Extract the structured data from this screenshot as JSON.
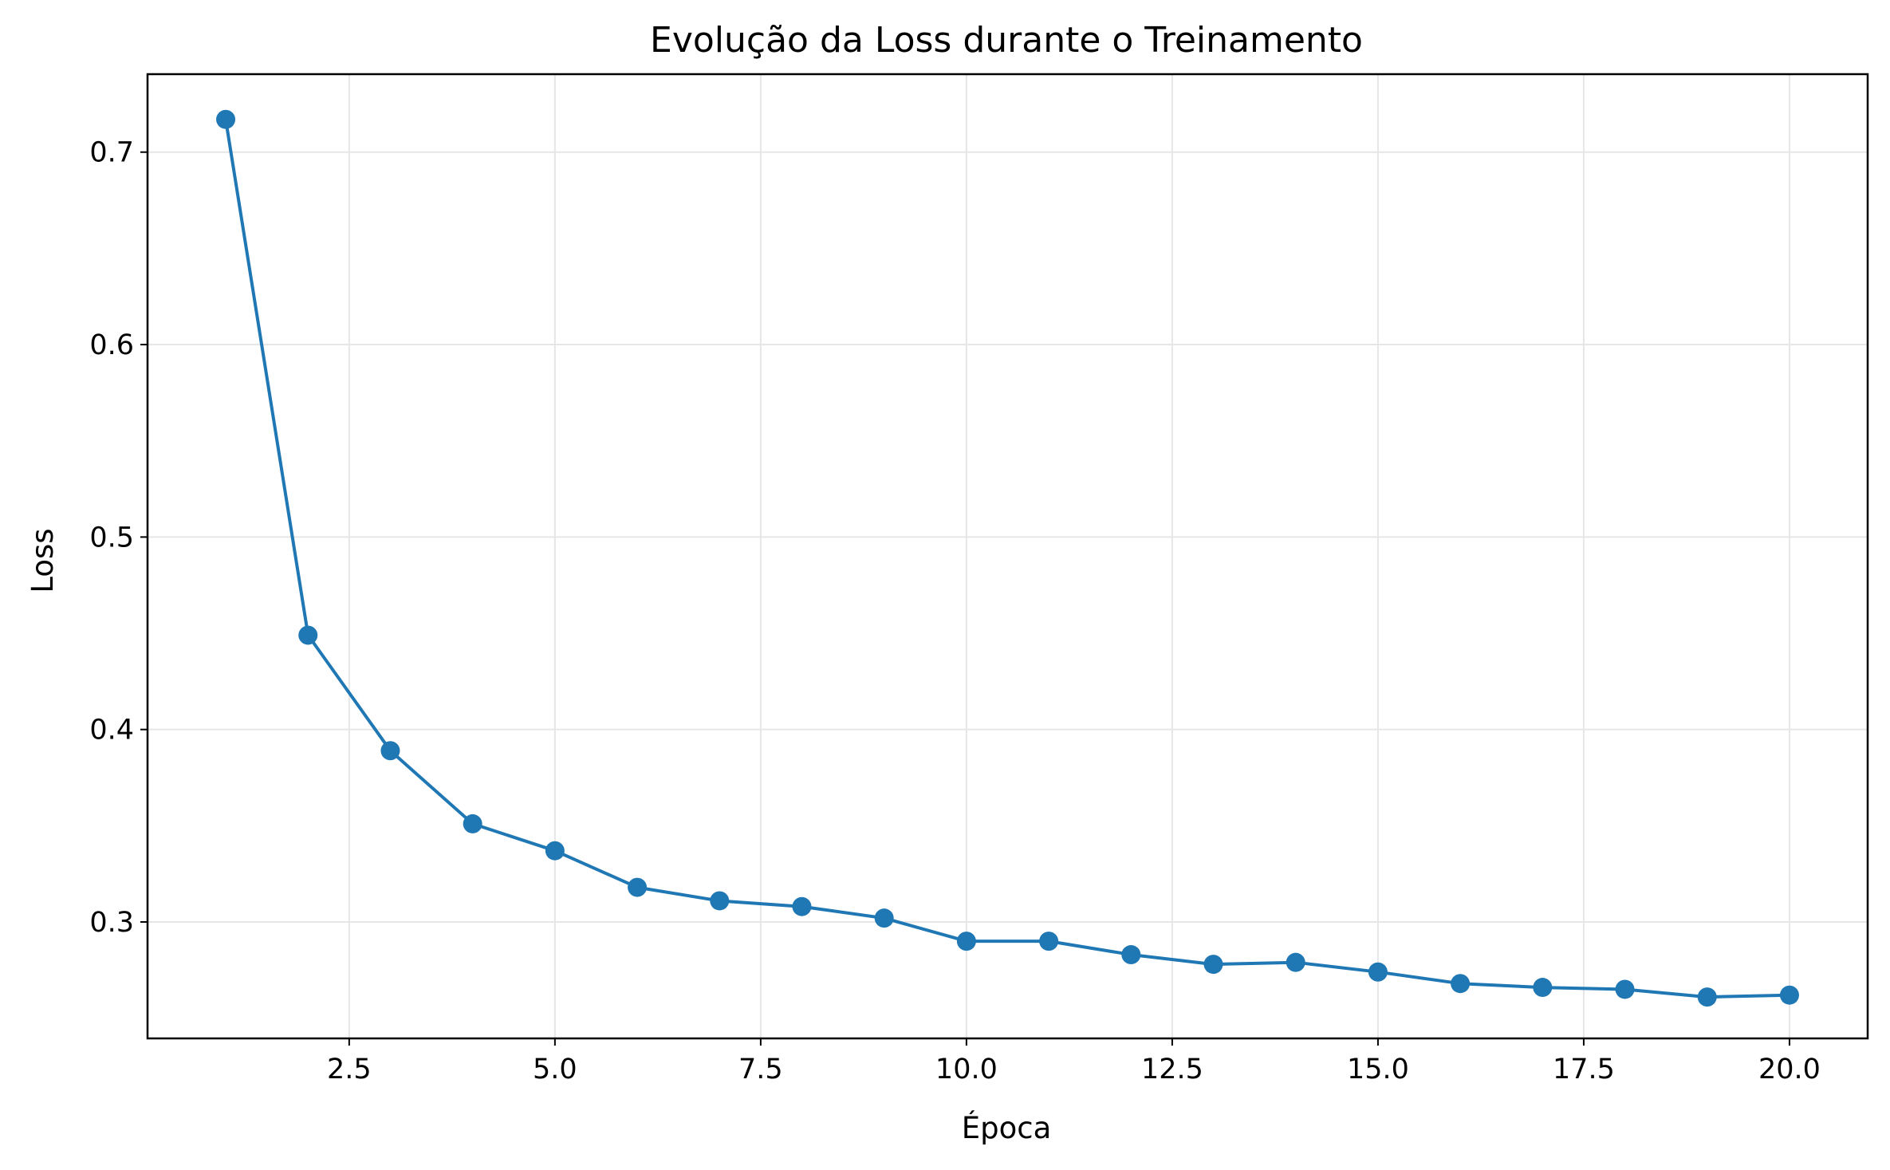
{
  "chart_data": {
    "type": "line",
    "title": "Evolução da Loss durante o Treinamento",
    "xlabel": "Época",
    "ylabel": "Loss",
    "xlim": [
      0.05,
      20.95
    ],
    "ylim": [
      0.2395,
      0.7405
    ],
    "xticks": [
      "2.5",
      "5.0",
      "7.5",
      "10.0",
      "12.5",
      "15.0",
      "17.5",
      "20.0"
    ],
    "yticks": [
      "0.3",
      "0.4",
      "0.5",
      "0.6",
      "0.7"
    ],
    "grid": true,
    "series": [
      {
        "color": "#1f77b4",
        "marker": "circle",
        "x": [
          1,
          2,
          3,
          4,
          5,
          6,
          7,
          8,
          9,
          10,
          11,
          12,
          13,
          14,
          15,
          16,
          17,
          18,
          19,
          20
        ],
        "values": [
          0.717,
          0.449,
          0.389,
          0.351,
          0.337,
          0.318,
          0.311,
          0.308,
          0.302,
          0.29,
          0.29,
          0.283,
          0.278,
          0.279,
          0.274,
          0.268,
          0.266,
          0.265,
          0.261,
          0.262
        ]
      }
    ]
  }
}
